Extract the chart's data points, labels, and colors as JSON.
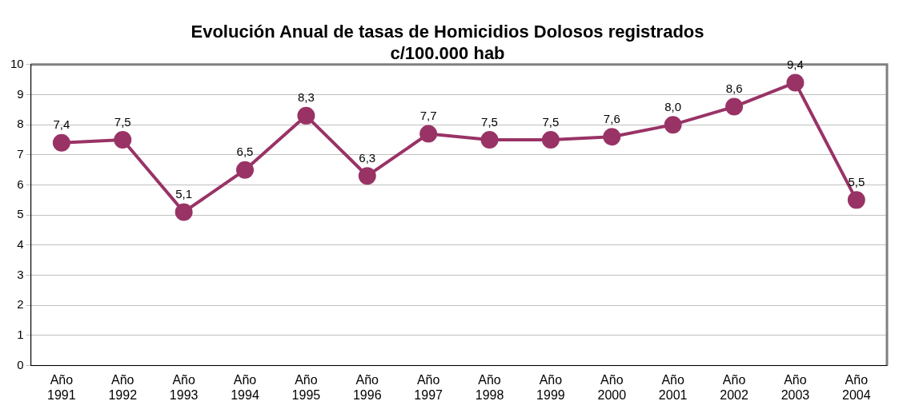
{
  "chart_data": {
    "type": "line",
    "title": "Evolución Anual de tasas de Homicidios Dolosos registrados\nc/100.000 hab",
    "categories": [
      "Año 1991",
      "Año 1992",
      "Año 1993",
      "Año 1994",
      "Año 1995",
      "Año 1996",
      "Año 1997",
      "Año 1998",
      "Año 1999",
      "Año 2000",
      "Año 2001",
      "Año 2002",
      "Año 2003",
      "Año 2004"
    ],
    "series": [
      {
        "color": "#993366",
        "values": [
          7.4,
          7.5,
          5.1,
          6.5,
          8.3,
          6.3,
          7.7,
          7.5,
          7.5,
          7.6,
          8.0,
          8.6,
          9.4,
          5.5
        ],
        "value_labels": [
          "7,4",
          "7,5",
          "5,1",
          "6,5",
          "8,3",
          "6,3",
          "7,7",
          "7,5",
          "7,5",
          "7,6",
          "8,0",
          "8,6",
          "9,4",
          "5,5"
        ]
      }
    ],
    "ylim": [
      0,
      10
    ],
    "yticks": [
      0,
      1,
      2,
      3,
      4,
      5,
      6,
      7,
      8,
      9,
      10
    ],
    "grid": "y",
    "legend": false,
    "marker": "circle",
    "line_style": "solid"
  }
}
